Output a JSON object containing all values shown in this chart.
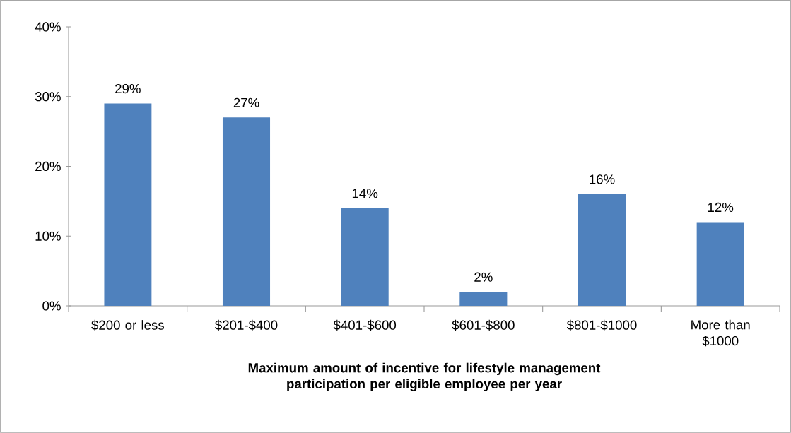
{
  "chart_data": {
    "type": "bar",
    "categories": [
      "$200 or less",
      "$201-$400",
      "$401-$600",
      "$601-$800",
      "$801-$1000",
      "More than $1000"
    ],
    "values": [
      29,
      27,
      14,
      2,
      16,
      12
    ],
    "value_labels": [
      "29%",
      "27%",
      "14%",
      "2%",
      "16%",
      "12%"
    ],
    "color": "#4f81bd",
    "xlabel": "Maximum amount of incentive for lifestyle management participation per eligible employee per year",
    "ylim": [
      0,
      40
    ],
    "yticks": [
      {
        "value": 0,
        "label": "0%"
      },
      {
        "value": 10,
        "label": "10%"
      },
      {
        "value": 20,
        "label": "20%"
      },
      {
        "value": 30,
        "label": "30%"
      },
      {
        "value": 40,
        "label": "40%"
      }
    ],
    "grid": false
  }
}
